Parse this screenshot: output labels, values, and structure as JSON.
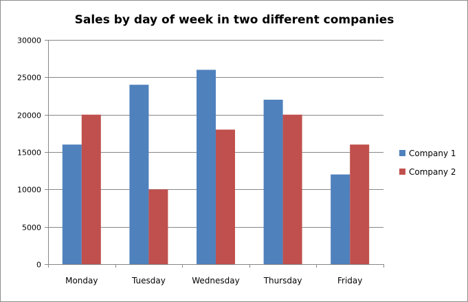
{
  "chart_data": {
    "type": "bar",
    "title": "Sales by day of week in two different companies",
    "xlabel": "",
    "ylabel": "",
    "categories": [
      "Monday",
      "Tuesday",
      "Wednesday",
      "Thursday",
      "Friday"
    ],
    "series": [
      {
        "name": "Company 1",
        "color": "#4f81bd",
        "values": [
          16000,
          24000,
          26000,
          22000,
          12000
        ]
      },
      {
        "name": "Company 2",
        "color": "#c0504d",
        "values": [
          20000,
          10000,
          18000,
          20000,
          16000
        ]
      }
    ],
    "ylim": [
      0,
      30000
    ],
    "yticks": [
      "0",
      "5000",
      "10000",
      "15000",
      "20000",
      "25000",
      "30000"
    ],
    "grid": true,
    "legend_position": "right"
  }
}
